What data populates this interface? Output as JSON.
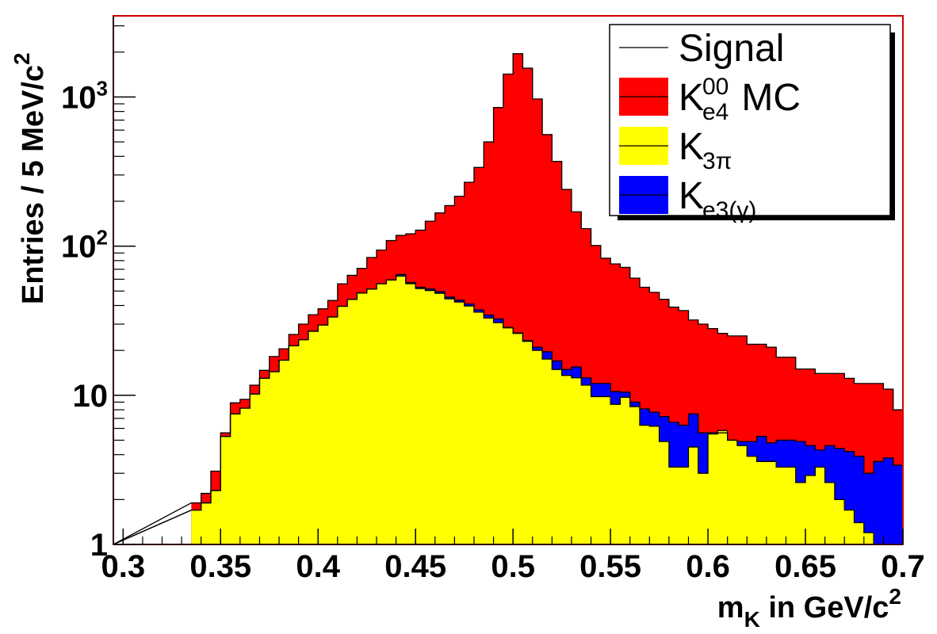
{
  "chart_data": {
    "type": "stacked-histogram",
    "xlabel": {
      "base": "m",
      "sub": "K",
      "rest": " in GeV/c",
      "sup": "2"
    },
    "ylabel": {
      "base": "Entries / 5 MeV/c",
      "sup": "2"
    },
    "xlim": [
      0.295,
      0.7
    ],
    "ylim": [
      1,
      3500
    ],
    "y_scale": "log",
    "bin_width": 0.005,
    "x_ticks": [
      "0.3",
      "0.35",
      "0.4",
      "0.45",
      "0.5",
      "0.55",
      "0.6",
      "0.65",
      "0.7"
    ],
    "y_ticks": [
      {
        "value": 1,
        "label": "1",
        "base": "1",
        "sup": ""
      },
      {
        "value": 10,
        "label": "10",
        "base": "10",
        "sup": ""
      },
      {
        "value": 100,
        "label": "10^2",
        "base": "10",
        "sup": "2"
      },
      {
        "value": 1000,
        "label": "10^3",
        "base": "10",
        "sup": "3"
      }
    ],
    "legend_position": "top-right",
    "legend": [
      {
        "key": "signal",
        "base": "Signal",
        "sub": "",
        "sup": "",
        "suffix": "",
        "color": "#ffffff"
      },
      {
        "key": "ke4",
        "base": "K",
        "sub": "e4",
        "sup": "00",
        "suffix": " MC",
        "color": "#ff0000"
      },
      {
        "key": "k3pi",
        "base": "K",
        "sub": "3π",
        "sup": "",
        "suffix": "",
        "color": "#ffff00"
      },
      {
        "key": "ke3",
        "base": "K",
        "sub": "e3(γ)",
        "sup": "",
        "suffix": "",
        "color": "#0000ff"
      }
    ],
    "colors": {
      "ke4_mc": "#ff0000",
      "k3pi": "#ffff00",
      "ke3": "#0000ff",
      "frame": "#cc0000",
      "background": "#ffffff"
    },
    "bin_centers": [
      0.3375,
      0.3425,
      0.3475,
      0.3525,
      0.3575,
      0.3625,
      0.3675,
      0.3725,
      0.3775,
      0.3825,
      0.3875,
      0.3925,
      0.3975,
      0.4025,
      0.4075,
      0.4125,
      0.4175,
      0.4225,
      0.4275,
      0.4325,
      0.4375,
      0.4425,
      0.4475,
      0.4525,
      0.4575,
      0.4625,
      0.4675,
      0.4725,
      0.4775,
      0.4825,
      0.4875,
      0.4925,
      0.4975,
      0.5025,
      0.5075,
      0.5125,
      0.5175,
      0.5225,
      0.5275,
      0.5325,
      0.5375,
      0.5425,
      0.5475,
      0.5525,
      0.5575,
      0.5625,
      0.5675,
      0.5725,
      0.5775,
      0.5825,
      0.5875,
      0.5925,
      0.5975,
      0.6025,
      0.6075,
      0.6125,
      0.6175,
      0.6225,
      0.6275,
      0.6325,
      0.6375,
      0.6425,
      0.6475,
      0.6525,
      0.6575,
      0.6625,
      0.6675,
      0.6725,
      0.6775,
      0.6825,
      0.6875,
      0.6925,
      0.6975
    ],
    "k3pi": [
      1.7,
      1.9,
      2.3,
      5.3,
      7.5,
      8.2,
      10.2,
      13.0,
      14.4,
      17.2,
      21.5,
      23.6,
      26.9,
      29.6,
      33.5,
      39.5,
      44.0,
      48.5,
      51.5,
      56.0,
      59.4,
      63.0,
      56.0,
      52.0,
      50.4,
      48.3,
      44.3,
      42.2,
      39.7,
      36.1,
      33.0,
      30.7,
      28.3,
      26.0,
      23.0,
      20.0,
      17.5,
      14.9,
      13.6,
      13.1,
      11.7,
      9.8,
      9.8,
      8.7,
      9.7,
      8.4,
      6.3,
      6.2,
      4.9,
      3.3,
      3.3,
      4.5,
      3.0,
      5.5,
      5.8,
      5.0,
      4.6,
      3.9,
      3.6,
      3.6,
      3.3,
      3.3,
      2.6,
      2.9,
      3.3,
      2.6,
      2.0,
      1.7,
      1.4,
      1.2,
      1.0,
      1.0,
      1.0
    ],
    "k3pi_ke3": [
      1.7,
      1.9,
      2.3,
      5.3,
      7.5,
      8.2,
      10.2,
      13.0,
      14.4,
      17.2,
      21.5,
      23.6,
      26.9,
      29.6,
      33.5,
      39.5,
      44.0,
      48.5,
      51.5,
      56.0,
      59.4,
      64.5,
      57.0,
      53.0,
      51.6,
      49.5,
      45.5,
      43.4,
      41.0,
      37.4,
      34.5,
      32.5,
      28.5,
      26.2,
      23.3,
      21.0,
      19.6,
      17.0,
      14.9,
      15.5,
      13.1,
      12.0,
      12.0,
      10.6,
      10.5,
      9.0,
      8.1,
      7.7,
      7.2,
      6.6,
      6.3,
      7.5,
      5.6,
      5.6,
      5.6,
      5.0,
      4.9,
      4.9,
      5.3,
      4.8,
      5.0,
      5.0,
      4.9,
      4.6,
      4.3,
      4.6,
      4.4,
      4.2,
      3.9,
      3.0,
      3.6,
      3.8,
      3.4
    ],
    "total_mc": [
      1.9,
      2.2,
      3.1,
      5.6,
      8.9,
      9.4,
      11.7,
      14.7,
      18.2,
      20.5,
      25.6,
      30.0,
      34.7,
      38.0,
      43.2,
      55.9,
      63.7,
      71.0,
      84.0,
      94.2,
      109,
      118,
      121,
      128,
      147,
      167,
      187,
      216,
      268,
      337,
      500,
      850,
      1424,
      1950,
      1560,
      970,
      560,
      370,
      240,
      170,
      131,
      101,
      83,
      76,
      72,
      61,
      53,
      49,
      44,
      39,
      37,
      32,
      30,
      28,
      26,
      25,
      25,
      22,
      22,
      21,
      18,
      18,
      15,
      15,
      14,
      14,
      14,
      13,
      12,
      12,
      12,
      11,
      8
    ]
  }
}
